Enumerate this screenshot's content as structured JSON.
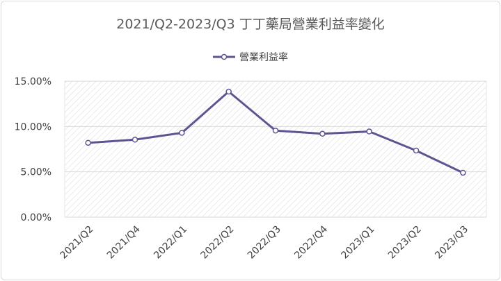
{
  "chart_data": {
    "type": "line",
    "title": "2021/Q2-2023/Q3 丁丁藥局營業利益率變化",
    "categories": [
      "2021/Q2",
      "2021/Q4",
      "2022/Q1",
      "2022/Q2",
      "2022/Q3",
      "2022/Q4",
      "2023/Q1",
      "2023/Q2",
      "2023/Q3"
    ],
    "series": [
      {
        "name": "營業利益率",
        "values": [
          8.2,
          8.55,
          9.3,
          13.85,
          9.55,
          9.2,
          9.45,
          7.35,
          4.9
        ],
        "color": "#5b5591"
      }
    ],
    "ylim": [
      0,
      15
    ],
    "yticks": [
      "0.00%",
      "5.00%",
      "10.00%",
      "15.00%"
    ],
    "ytick_values": [
      0,
      5,
      10,
      15
    ],
    "grid": true,
    "legend_position": "top",
    "plot_background": "hatched-light-gray"
  }
}
